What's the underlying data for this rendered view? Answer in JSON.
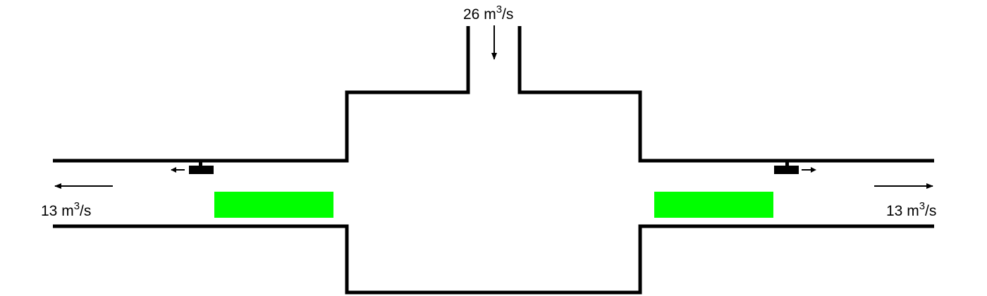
{
  "inlet": {
    "flow_number": "26",
    "flow_unit": "m",
    "flow_exponent": "3",
    "flow_suffix": "/s"
  },
  "left_outlet": {
    "flow_number": "13",
    "flow_unit": "m",
    "flow_exponent": "3",
    "flow_suffix": "/s"
  },
  "right_outlet": {
    "flow_number": "13",
    "flow_unit": "m",
    "flow_exponent": "3",
    "flow_suffix": "/s"
  },
  "colors": {
    "duct": "#000000",
    "filter": "#00ff00"
  }
}
